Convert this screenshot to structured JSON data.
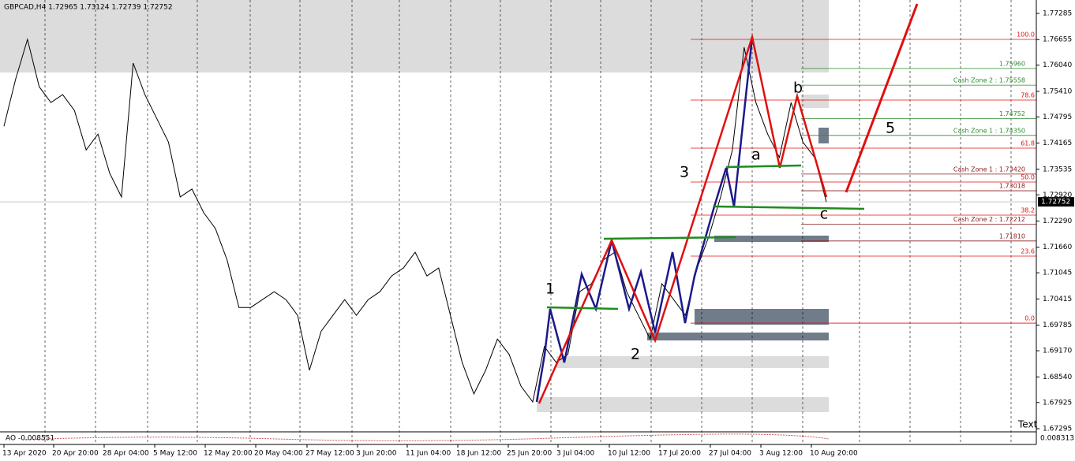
{
  "header": {
    "title": "GBPCAD,H4 1.72965 1.73124 1.72739 1.72752"
  },
  "chart_data": {
    "type": "line",
    "color": "#000000",
    "values": [
      1.7457,
      1.7571,
      1.7666,
      1.7552,
      1.7514,
      1.7533,
      1.7495,
      1.74,
      1.7438,
      1.7344,
      1.7287,
      1.7609,
      1.7533,
      1.7476,
      1.7419,
      1.7287,
      1.7306,
      1.7249,
      1.7211,
      1.7135,
      1.7021,
      1.7021,
      1.704,
      1.7059,
      1.704,
      1.7002,
      1.687,
      1.6964,
      1.7002,
      1.704,
      1.7002,
      1.704,
      1.7059,
      1.7097,
      1.7116,
      1.7154,
      1.7097,
      1.7116,
      1.7002,
      1.6889,
      1.6813,
      1.687,
      1.6945,
      1.6908,
      1.6832,
      1.6794,
      1.6927,
      1.6889,
      1.6908,
      1.7059,
      1.7078,
      1.7135,
      1.7154,
      1.7059,
      1.7002,
      1.6945,
      1.7078,
      1.704,
      1.7002,
      1.7116,
      1.7192,
      1.7287,
      1.74,
      1.7647,
      1.7514,
      1.7438,
      1.7382,
      1.7514,
      1.7419,
      1.7382,
      1.72752
    ],
    "ylim": [
      1.67219,
      1.77607
    ],
    "yticks": [
      {
        "value": 1.77285,
        "label": "1.77285"
      },
      {
        "value": 1.76655,
        "label": "1.76655"
      },
      {
        "value": 1.7604,
        "label": "1.76040"
      },
      {
        "value": 1.7541,
        "label": "1.75410"
      },
      {
        "value": 1.74795,
        "label": "1.74795"
      },
      {
        "value": 1.74165,
        "label": "1.74165"
      },
      {
        "value": 1.73535,
        "label": "1.73535"
      },
      {
        "value": 1.7292,
        "label": "1.72920"
      },
      {
        "value": 1.7229,
        "label": "1.72290"
      },
      {
        "value": 1.7166,
        "label": "1.71660"
      },
      {
        "value": 1.71045,
        "label": "1.71045"
      },
      {
        "value": 1.70415,
        "label": "1.70415"
      },
      {
        "value": 1.69785,
        "label": "1.69785"
      },
      {
        "value": 1.6917,
        "label": "1.69170"
      },
      {
        "value": 1.6854,
        "label": "1.68540"
      },
      {
        "value": 1.67925,
        "label": "1.67925"
      },
      {
        "value": 1.67295,
        "label": "1.67295"
      }
    ],
    "grid": true,
    "current_price": 1.72752,
    "time_labels": [
      "13 Apr 2020",
      "20 Apr 20:00",
      "28 Apr 04:00",
      "5 May 12:00",
      "12 May 20:00",
      "20 May 04:00",
      "27 May 12:00",
      "3 Jun 20:00",
      "11 Jun 04:00",
      "18 Jun 12:00",
      "25 Jun 20:00",
      "3 Jul 04:00",
      "10 Jul 12:00",
      "17 Jul 20:00",
      "27 Jul 04:00",
      "3 Aug 12:00",
      "10 Aug 20:00"
    ],
    "fib_levels": [
      {
        "label": "100.0",
        "price": 1.76659
      },
      {
        "label": "78.6",
        "price": 1.75199
      },
      {
        "label": "61.8",
        "price": 1.74043
      },
      {
        "label": "50.0",
        "price": 1.73228
      },
      {
        "label": "38.2",
        "price": 1.72432
      },
      {
        "label": "23.6",
        "price": 1.71446
      },
      {
        "label": "0.0",
        "price": 1.69834
      }
    ],
    "levels": [
      {
        "label": "1.75960",
        "value": 1.7596,
        "color": "#2e8b2e"
      },
      {
        "label": "Cash Zone 2 : 1.75558",
        "value": 1.75558,
        "color": "#2e8b2e"
      },
      {
        "label": "1.74752",
        "value": 1.74752,
        "color": "#2e8b2e"
      },
      {
        "label": "Cash Zone 1 : 1.74350",
        "value": 1.7435,
        "color": "#2e8b2e"
      },
      {
        "label": "Cash Zone 1 : 1.73420",
        "value": 1.7342,
        "color": "#8b1a1a"
      },
      {
        "label": "1.73018",
        "value": 1.73018,
        "color": "#8b1a1a"
      },
      {
        "label": "Cash Zone 2 : 1.72212",
        "value": 1.72212,
        "color": "#8b1a1a"
      },
      {
        "label": "1.71810",
        "value": 1.7181,
        "color": "#8b1a1a"
      }
    ],
    "wave_labels": [
      "1",
      "2",
      "3",
      "a",
      "b",
      "c",
      "5"
    ],
    "indicator": {
      "label": "AO -0.008551",
      "scale_label": "0.008313"
    },
    "corner_text": "Text"
  }
}
